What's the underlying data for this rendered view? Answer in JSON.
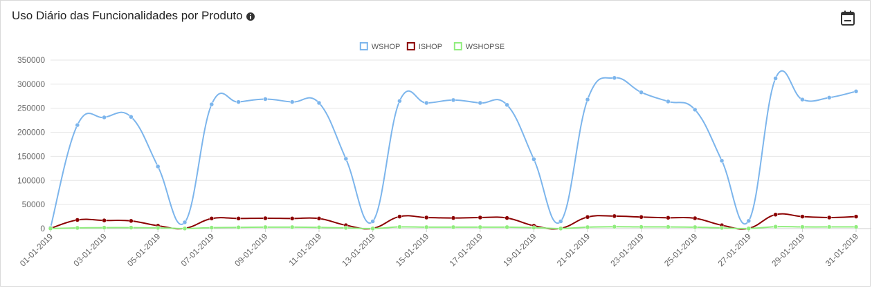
{
  "header": {
    "title": "Uso Diário das Funcionalidades por Produto",
    "info_icon": "info-circle-icon",
    "calendar_icon": "calendar-icon"
  },
  "chart_data": {
    "type": "line",
    "title": "",
    "xlabel": "",
    "ylabel": "",
    "ylim": [
      0,
      350000
    ],
    "yticks": [
      0,
      50000,
      100000,
      150000,
      200000,
      250000,
      300000,
      350000
    ],
    "grid": true,
    "legend_position": "top-center",
    "x": [
      "01-01-2019",
      "02-01-2019",
      "03-01-2019",
      "04-01-2019",
      "05-01-2019",
      "06-01-2019",
      "07-01-2019",
      "08-01-2019",
      "09-01-2019",
      "10-01-2019",
      "11-01-2019",
      "12-01-2019",
      "13-01-2019",
      "14-01-2019",
      "15-01-2019",
      "16-01-2019",
      "17-01-2019",
      "18-01-2019",
      "19-01-2019",
      "20-01-2019",
      "21-01-2019",
      "22-01-2019",
      "23-01-2019",
      "24-01-2019",
      "25-01-2019",
      "26-01-2019",
      "27-01-2019",
      "28-01-2019",
      "29-01-2019",
      "30-01-2019",
      "31-01-2019"
    ],
    "xtick_labels": [
      "01-01-2019",
      "03-01-2019",
      "05-01-2019",
      "07-01-2019",
      "09-01-2019",
      "11-01-2019",
      "13-01-2019",
      "15-01-2019",
      "17-01-2019",
      "19-01-2019",
      "21-01-2019",
      "23-01-2019",
      "25-01-2019",
      "27-01-2019",
      "29-01-2019",
      "31-01-2019"
    ],
    "series": [
      {
        "name": "WSHOP",
        "color": "#7cb5ec",
        "values": [
          2000,
          215000,
          231000,
          232000,
          129000,
          13000,
          258000,
          263000,
          269000,
          263000,
          261000,
          145000,
          15000,
          265000,
          261000,
          267000,
          261000,
          257000,
          144000,
          15000,
          268000,
          313000,
          283000,
          264000,
          247000,
          141000,
          16000,
          312000,
          268000,
          272000,
          285000
        ]
      },
      {
        "name": "ISHOP",
        "color": "#8b0000",
        "values": [
          500,
          18000,
          17000,
          16000,
          6000,
          500,
          21000,
          21000,
          21500,
          21000,
          21000,
          7000,
          500,
          25000,
          23000,
          22000,
          23000,
          22000,
          6000,
          500,
          24000,
          26000,
          24000,
          22500,
          21500,
          7000,
          500,
          29000,
          25000,
          23000,
          25000
        ]
      },
      {
        "name": "WSHOPSE",
        "color": "#90ed7d",
        "values": [
          200,
          1500,
          2000,
          2000,
          1500,
          200,
          2000,
          2500,
          3000,
          3000,
          2500,
          1500,
          200,
          3500,
          3000,
          3000,
          3000,
          3000,
          2000,
          200,
          3000,
          4000,
          3500,
          3500,
          3000,
          1500,
          200,
          4000,
          3500,
          3500,
          3500
        ]
      }
    ]
  }
}
